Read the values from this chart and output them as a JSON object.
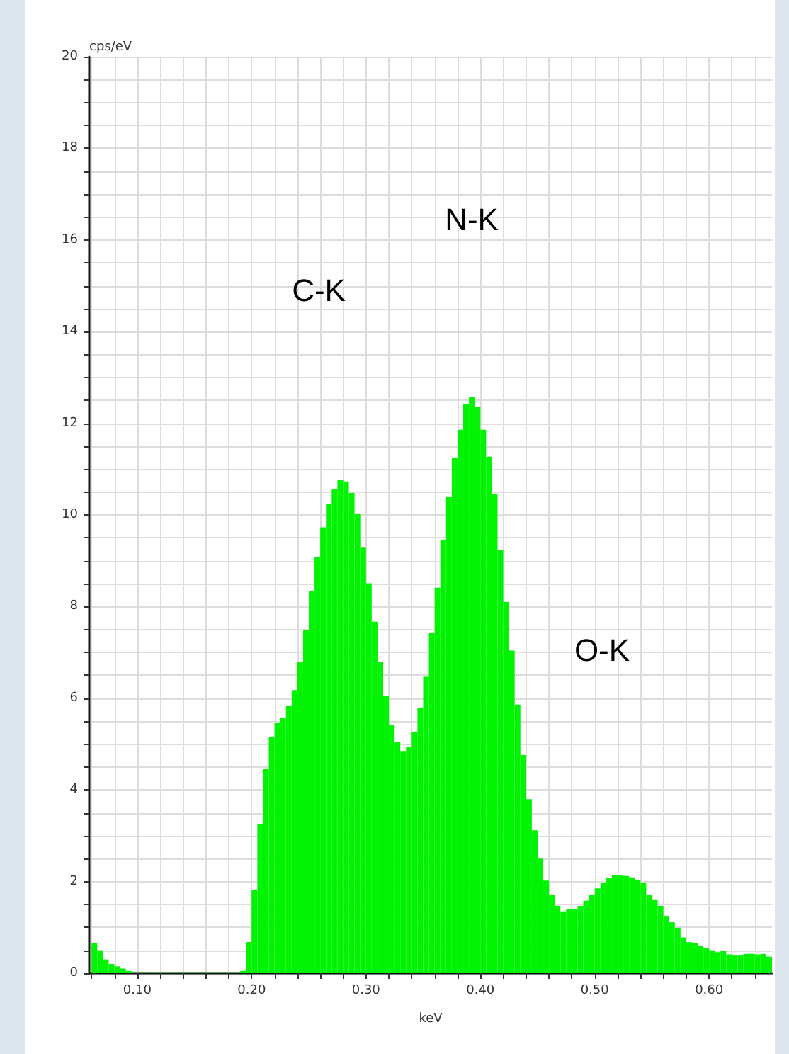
{
  "chart_data": {
    "type": "histogram",
    "xlabel": "keV",
    "ylabel": "cps/eV",
    "color": "#00f300",
    "bins": [
      0.06,
      0.065,
      0.07,
      0.075,
      0.08,
      0.085,
      0.09,
      0.095,
      0.1,
      0.105,
      0.11,
      0.115,
      0.12,
      0.125,
      0.13,
      0.135,
      0.14,
      0.145,
      0.15,
      0.155,
      0.16,
      0.165,
      0.17,
      0.175,
      0.18,
      0.185,
      0.19,
      0.195,
      0.2,
      0.205,
      0.21,
      0.215,
      0.22,
      0.225,
      0.23,
      0.235,
      0.24,
      0.245,
      0.25,
      0.255,
      0.26,
      0.265,
      0.27,
      0.275,
      0.28,
      0.285,
      0.29,
      0.295,
      0.3,
      0.305,
      0.31,
      0.315,
      0.32,
      0.325,
      0.33,
      0.335,
      0.34,
      0.345,
      0.35,
      0.355,
      0.36,
      0.365,
      0.37,
      0.375,
      0.38,
      0.385,
      0.39,
      0.395,
      0.4,
      0.405,
      0.41,
      0.415,
      0.42,
      0.425,
      0.43,
      0.435,
      0.44,
      0.445,
      0.45,
      0.455,
      0.46,
      0.465,
      0.47,
      0.475,
      0.48,
      0.485,
      0.49,
      0.495,
      0.5,
      0.505,
      0.51,
      0.515,
      0.52,
      0.525,
      0.53,
      0.535,
      0.54,
      0.545,
      0.55,
      0.555,
      0.56,
      0.565,
      0.57,
      0.575,
      0.58,
      0.585,
      0.59,
      0.595,
      0.6,
      0.605,
      0.61,
      0.615,
      0.62,
      0.625,
      0.63,
      0.635,
      0.64,
      0.645,
      0.65,
      0.655
    ],
    "values": [
      0.65,
      0.5,
      0.3,
      0.2,
      0.15,
      0.1,
      0.05,
      0.02,
      0.02,
      0.02,
      0.02,
      0.02,
      0.02,
      0.02,
      0.02,
      0.02,
      0.02,
      0.02,
      0.02,
      0.02,
      0.02,
      0.02,
      0.02,
      0.02,
      0.02,
      0.02,
      0.05,
      0.68,
      1.81,
      3.26,
      4.46,
      5.16,
      5.47,
      5.57,
      5.83,
      6.18,
      6.8,
      7.48,
      8.33,
      9.08,
      9.73,
      10.23,
      10.57,
      10.76,
      10.73,
      10.48,
      10.03,
      9.3,
      8.51,
      7.67,
      6.8,
      6.06,
      5.42,
      5.04,
      4.85,
      4.93,
      5.26,
      5.78,
      6.47,
      7.42,
      8.41,
      9.46,
      10.39,
      11.24,
      11.86,
      12.41,
      12.58,
      12.36,
      11.86,
      11.27,
      10.45,
      9.24,
      8.1,
      7.04,
      5.86,
      4.76,
      3.8,
      3.12,
      2.5,
      2.02,
      1.71,
      1.47,
      1.35,
      1.4,
      1.4,
      1.47,
      1.58,
      1.71,
      1.85,
      1.97,
      2.07,
      2.15,
      2.15,
      2.12,
      2.09,
      2.04,
      1.97,
      1.71,
      1.61,
      1.47,
      1.25,
      1.11,
      0.99,
      0.78,
      0.68,
      0.65,
      0.6,
      0.55,
      0.5,
      0.46,
      0.48,
      0.41,
      0.4,
      0.4,
      0.42,
      0.42,
      0.41,
      0.42,
      0.36
    ],
    "xlim": [
      0.058,
      0.655
    ],
    "xticks": [
      {
        "value": 0.06,
        "label": null
      },
      {
        "value": 0.08,
        "label": null
      },
      {
        "value": 0.1,
        "label": "0.10"
      },
      {
        "value": 0.12,
        "label": null
      },
      {
        "value": 0.14,
        "label": null
      },
      {
        "value": 0.16,
        "label": null
      },
      {
        "value": 0.18,
        "label": null
      },
      {
        "value": 0.2,
        "label": "0.20"
      },
      {
        "value": 0.22,
        "label": null
      },
      {
        "value": 0.24,
        "label": null
      },
      {
        "value": 0.26,
        "label": null
      },
      {
        "value": 0.28,
        "label": null
      },
      {
        "value": 0.3,
        "label": "0.30"
      },
      {
        "value": 0.32,
        "label": null
      },
      {
        "value": 0.34,
        "label": null
      },
      {
        "value": 0.36,
        "label": null
      },
      {
        "value": 0.38,
        "label": null
      },
      {
        "value": 0.4,
        "label": "0.40"
      },
      {
        "value": 0.42,
        "label": null
      },
      {
        "value": 0.44,
        "label": null
      },
      {
        "value": 0.46,
        "label": null
      },
      {
        "value": 0.48,
        "label": null
      },
      {
        "value": 0.5,
        "label": "0.50"
      },
      {
        "value": 0.52,
        "label": null
      },
      {
        "value": 0.54,
        "label": null
      },
      {
        "value": 0.56,
        "label": null
      },
      {
        "value": 0.58,
        "label": null
      },
      {
        "value": 0.6,
        "label": "0.60"
      },
      {
        "value": 0.62,
        "label": null
      },
      {
        "value": 0.64,
        "label": null
      }
    ],
    "ylim": [
      0,
      20
    ],
    "yticks": [
      0,
      {
        "value": 0.5,
        "label": null
      },
      {
        "value": 1,
        "label": null
      },
      {
        "value": 1.5,
        "label": null
      },
      2,
      {
        "value": 2.5,
        "label": null
      },
      {
        "value": 3,
        "label": null
      },
      {
        "value": 3.5,
        "label": null
      },
      4,
      {
        "value": 4.5,
        "label": null
      },
      {
        "value": 5,
        "label": null
      },
      {
        "value": 5.5,
        "label": null
      },
      6,
      {
        "value": 6.5,
        "label": null
      },
      {
        "value": 7,
        "label": null
      },
      {
        "value": 7.5,
        "label": null
      },
      8,
      {
        "value": 8.5,
        "label": null
      },
      {
        "value": 9,
        "label": null
      },
      {
        "value": 9.5,
        "label": null
      },
      10,
      {
        "value": 10.5,
        "label": null
      },
      {
        "value": 11,
        "label": null
      },
      {
        "value": 11.5,
        "label": null
      },
      12,
      {
        "value": 12.5,
        "label": null
      },
      {
        "value": 13,
        "label": null
      },
      {
        "value": 13.5,
        "label": null
      },
      14,
      {
        "value": 14.5,
        "label": null
      },
      {
        "value": 15,
        "label": null
      },
      {
        "value": 15.5,
        "label": null
      },
      16,
      {
        "value": 16.5,
        "label": null
      },
      {
        "value": 17,
        "label": null
      },
      {
        "value": 17.5,
        "label": null
      },
      18,
      {
        "value": 18.5,
        "label": null
      },
      {
        "value": 19,
        "label": null
      },
      {
        "value": 19.5,
        "label": null
      },
      20
    ],
    "grid": true,
    "annotations": [
      "C-K",
      "N-K",
      "O-K"
    ]
  }
}
